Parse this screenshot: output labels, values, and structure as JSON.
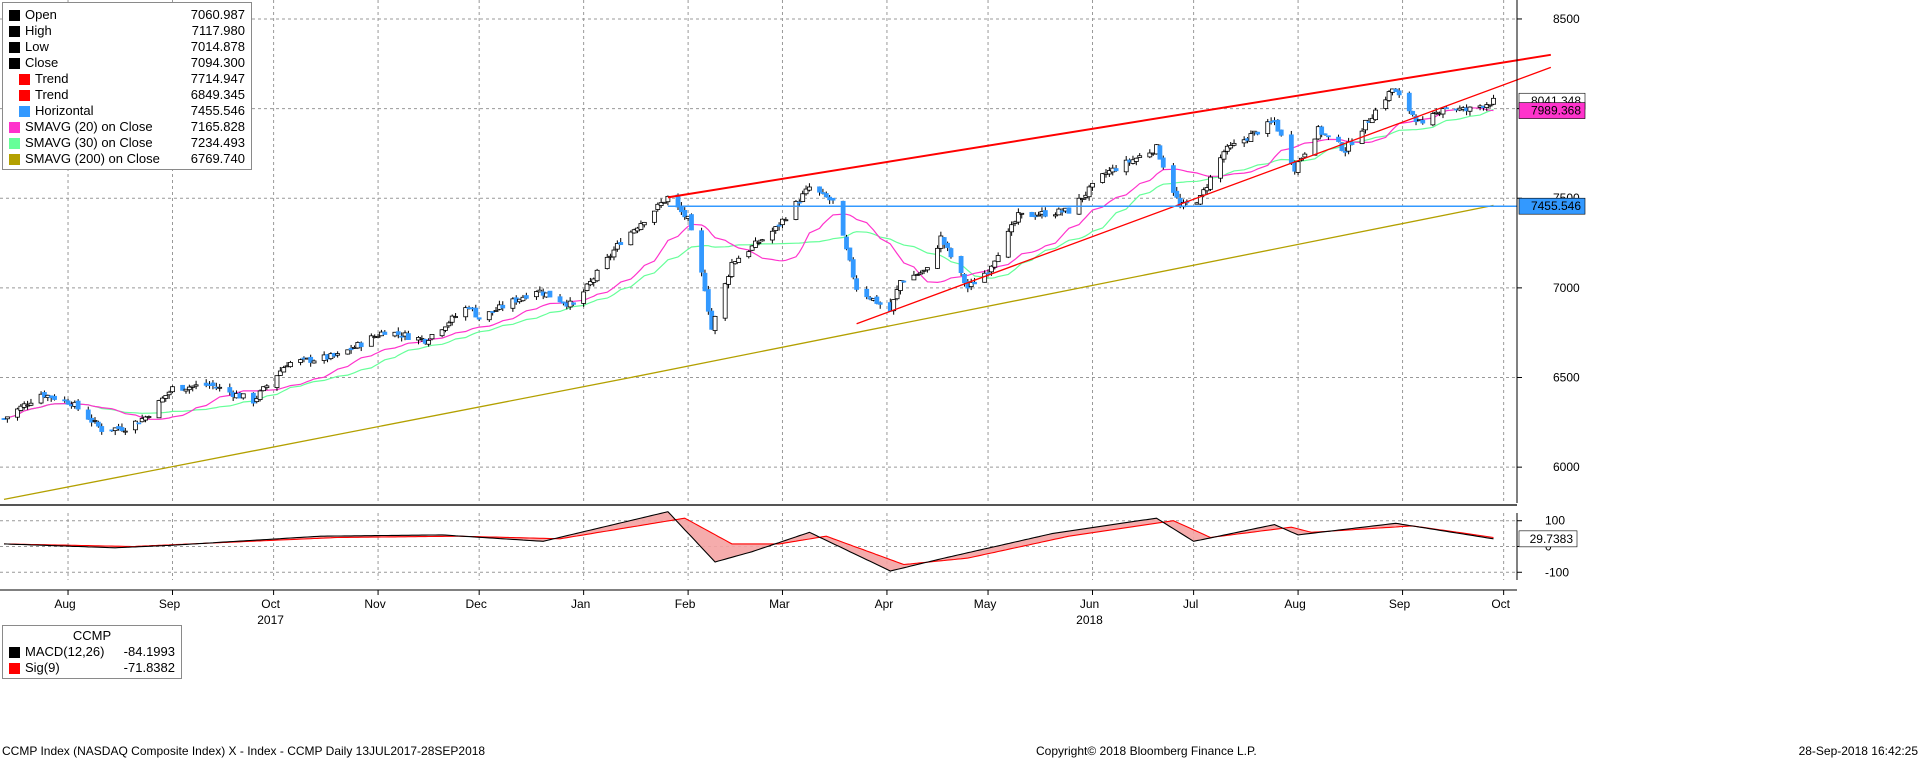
{
  "legend": {
    "rows": [
      {
        "label": "Open",
        "value": "7060.987",
        "color": "#000000"
      },
      {
        "label": "High",
        "value": "7117.980",
        "color": "#000000"
      },
      {
        "label": "Low",
        "value": "7014.878",
        "color": "#000000"
      },
      {
        "label": "Close",
        "value": "7094.300",
        "color": "#000000"
      },
      {
        "label": "Trend",
        "value": "7714.947",
        "color": "#ff0000"
      },
      {
        "label": "Trend",
        "value": "6849.345",
        "color": "#ff0000"
      },
      {
        "label": "Horizontal",
        "value": "7455.546",
        "color": "#3399ff"
      },
      {
        "label": "SMAVG (20)  on Close",
        "value": "7165.828",
        "color": "#ff33cc"
      },
      {
        "label": "SMAVG (30)  on Close",
        "value": "7234.493",
        "color": "#66ff99"
      },
      {
        "label": "SMAVG (200)  on Close",
        "value": "6769.740",
        "color": "#b3a000"
      }
    ]
  },
  "macd_legend": {
    "title": "CCMP",
    "rows": [
      {
        "label": "MACD(12,26)",
        "value": "-84.1993",
        "color": "#000000"
      },
      {
        "label": "Sig(9)",
        "value": "-71.8382",
        "color": "#ff0000"
      }
    ]
  },
  "price_tags": {
    "last": "8041.348",
    "smavg20": "7989.368",
    "horizontal": "7455.546",
    "macd": "29.7383"
  },
  "colors": {
    "up": "#ffffff",
    "down": "#3399ff",
    "trend": "#ff0000",
    "horizontal": "#3399ff",
    "sma20": "#ff33cc",
    "sma30": "#66ff99",
    "sma200": "#b3a000",
    "macd": "#000000",
    "signal": "#ff0000",
    "fill": "#f4a3a3"
  },
  "footer": {
    "left": "CCMP Index (NASDAQ Composite Index) X - Index - CCMP  Daily 13JUL2017-28SEP2018",
    "center": "Copyright© 2018 Bloomberg Finance L.P.",
    "right": "28-Sep-2018 16:42:25"
  },
  "chart_data": {
    "type": "candlestick",
    "x_range": [
      "2017-07-13",
      "2018-09-28"
    ],
    "x_ticks": [
      {
        "label": "Aug",
        "date": "2017-08-01"
      },
      {
        "label": "Sep",
        "date": "2017-09-01"
      },
      {
        "label": "Oct",
        "date": "2017-10-01",
        "year": "2017"
      },
      {
        "label": "Nov",
        "date": "2017-11-01"
      },
      {
        "label": "Dec",
        "date": "2017-12-01"
      },
      {
        "label": "Jan",
        "date": "2018-01-01"
      },
      {
        "label": "Feb",
        "date": "2018-02-01"
      },
      {
        "label": "Mar",
        "date": "2018-03-01"
      },
      {
        "label": "Apr",
        "date": "2018-04-01"
      },
      {
        "label": "May",
        "date": "2018-05-01"
      },
      {
        "label": "Jun",
        "date": "2018-06-01",
        "year": "2018"
      },
      {
        "label": "Jul",
        "date": "2018-07-01"
      },
      {
        "label": "Aug",
        "date": "2018-08-01"
      },
      {
        "label": "Sep",
        "date": "2018-09-01"
      },
      {
        "label": "Oct",
        "date": "2018-10-01"
      }
    ],
    "y_ticks": [
      6000,
      6500,
      7000,
      7500,
      8000,
      8500
    ],
    "y_range": [
      5800,
      8550
    ],
    "grid": true,
    "price_anchors": [
      [
        "2017-07-13",
        6270
      ],
      [
        "2017-07-24",
        6410
      ],
      [
        "2017-08-02",
        6360
      ],
      [
        "2017-08-11",
        6210
      ],
      [
        "2017-08-18",
        6220
      ],
      [
        "2017-08-24",
        6280
      ],
      [
        "2017-09-01",
        6440
      ],
      [
        "2017-09-12",
        6460
      ],
      [
        "2017-09-25",
        6370
      ],
      [
        "2017-10-05",
        6580
      ],
      [
        "2017-10-20",
        6620
      ],
      [
        "2017-11-03",
        6760
      ],
      [
        "2017-11-15",
        6710
      ],
      [
        "2017-11-28",
        6900
      ],
      [
        "2017-12-01",
        6830
      ],
      [
        "2017-12-18",
        6990
      ],
      [
        "2017-12-29",
        6900
      ],
      [
        "2018-01-12",
        7260
      ],
      [
        "2018-01-26",
        7505
      ],
      [
        "2018-02-01",
        7380
      ],
      [
        "2018-02-06",
        7000
      ],
      [
        "2018-02-08",
        6770
      ],
      [
        "2018-02-14",
        7140
      ],
      [
        "2018-02-27",
        7330
      ],
      [
        "2018-03-09",
        7560
      ],
      [
        "2018-03-16",
        7480
      ],
      [
        "2018-03-23",
        7000
      ],
      [
        "2018-04-02",
        6870
      ],
      [
        "2018-04-05",
        7040
      ],
      [
        "2018-04-13",
        7100
      ],
      [
        "2018-04-17",
        7280
      ],
      [
        "2018-04-25",
        7000
      ],
      [
        "2018-05-01",
        7100
      ],
      [
        "2018-05-10",
        7400
      ],
      [
        "2018-05-25",
        7430
      ],
      [
        "2018-06-05",
        7640
      ],
      [
        "2018-06-20",
        7780
      ],
      [
        "2018-06-27",
        7450
      ],
      [
        "2018-07-03",
        7500
      ],
      [
        "2018-07-10",
        7760
      ],
      [
        "2018-07-25",
        7930
      ],
      [
        "2018-07-31",
        7670
      ],
      [
        "2018-08-07",
        7880
      ],
      [
        "2018-08-15",
        7770
      ],
      [
        "2018-08-29",
        8110
      ],
      [
        "2018-09-07",
        7900
      ],
      [
        "2018-09-13",
        8010
      ],
      [
        "2018-09-20",
        7990
      ],
      [
        "2018-09-28",
        8041
      ]
    ],
    "sma200_anchors": [
      [
        "2017-07-13",
        5820
      ],
      [
        "2018-01-15",
        6500
      ],
      [
        "2018-09-28",
        7460
      ]
    ],
    "trend_upper": [
      [
        "2018-01-26",
        7505
      ],
      [
        "2018-10-15",
        8300
      ]
    ],
    "trend_lower": [
      [
        "2018-03-23",
        6800
      ],
      [
        "2018-10-15",
        8230
      ]
    ],
    "horizontal_level": 7455.546,
    "horizontal_from": "2018-01-26",
    "macd": {
      "y_ticks": [
        -100,
        0,
        100
      ],
      "y_range": [
        -130,
        130
      ],
      "macd_anchors": [
        [
          "2017-07-13",
          10
        ],
        [
          "2017-08-15",
          -5
        ],
        [
          "2017-09-01",
          5
        ],
        [
          "2017-10-15",
          40
        ],
        [
          "2017-11-20",
          45
        ],
        [
          "2017-12-20",
          20
        ],
        [
          "2018-01-26",
          135
        ],
        [
          "2018-02-09",
          -60
        ],
        [
          "2018-02-20",
          -20
        ],
        [
          "2018-03-09",
          55
        ],
        [
          "2018-04-02",
          -95
        ],
        [
          "2018-04-18",
          -45
        ],
        [
          "2018-05-20",
          50
        ],
        [
          "2018-06-20",
          110
        ],
        [
          "2018-07-01",
          20
        ],
        [
          "2018-07-25",
          85
        ],
        [
          "2018-08-01",
          45
        ],
        [
          "2018-08-30",
          90
        ],
        [
          "2018-09-28",
          29.7
        ]
      ],
      "signal_anchors": [
        [
          "2017-07-13",
          10
        ],
        [
          "2017-08-20",
          0
        ],
        [
          "2017-10-20",
          35
        ],
        [
          "2017-11-25",
          40
        ],
        [
          "2017-12-25",
          30
        ],
        [
          "2018-01-31",
          110
        ],
        [
          "2018-02-14",
          10
        ],
        [
          "2018-02-28",
          10
        ],
        [
          "2018-03-14",
          40
        ],
        [
          "2018-04-06",
          -70
        ],
        [
          "2018-04-25",
          -45
        ],
        [
          "2018-05-25",
          40
        ],
        [
          "2018-06-25",
          100
        ],
        [
          "2018-07-06",
          35
        ],
        [
          "2018-07-30",
          75
        ],
        [
          "2018-08-05",
          55
        ],
        [
          "2018-09-04",
          80
        ],
        [
          "2018-09-28",
          35
        ]
      ]
    }
  }
}
